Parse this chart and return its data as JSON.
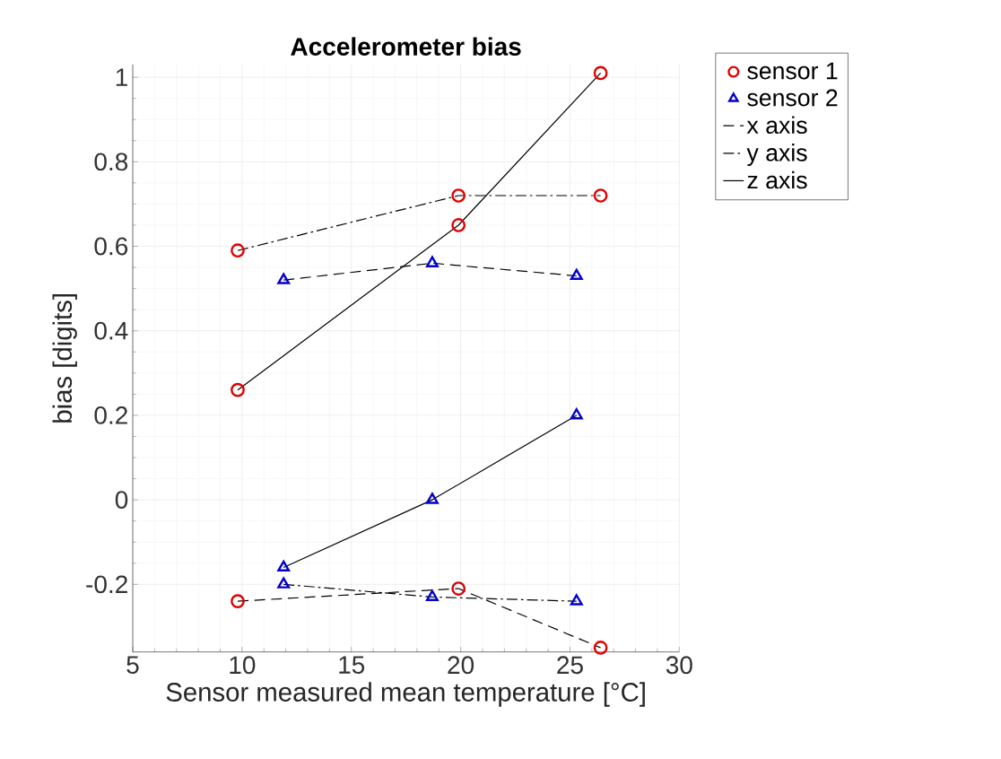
{
  "chart_data": {
    "type": "scatter",
    "title": "Accelerometer bias",
    "xlabel": "Sensor measured mean temperature [°C]",
    "ylabel": "bias [digits]",
    "xlim": [
      5,
      30
    ],
    "xticks": [
      5,
      10,
      15,
      20,
      25,
      30
    ],
    "ylim": [
      -0.36,
      1.03
    ],
    "yticks": [
      -0.2,
      0,
      0.2,
      0.4,
      0.6,
      0.8,
      1
    ],
    "grid": true,
    "legend": "top right",
    "series": [
      {
        "name": "sensor 1",
        "color": "#e00000",
        "marker": "circle",
        "x": [
          9.8,
          9.8,
          9.8,
          19.9,
          19.9,
          19.9,
          26.4,
          26.4,
          26.4
        ],
        "values": [
          0.59,
          0.26,
          -0.24,
          0.72,
          0.65,
          -0.21,
          1.01,
          0.72,
          -0.35
        ]
      },
      {
        "name": "sensor 2",
        "color": "#0000d0",
        "marker": "triangle",
        "x": [
          11.9,
          11.9,
          11.9,
          18.7,
          18.7,
          18.7,
          25.3,
          25.3,
          25.3
        ],
        "values": [
          0.52,
          -0.16,
          -0.2,
          0.56,
          0,
          -0.23,
          0.53,
          0.2,
          -0.24
        ]
      },
      {
        "name": "x axis",
        "type": "line",
        "color": "#000000",
        "line_style": "dashed",
        "x": [
          9.8,
          19.9,
          26.4,
          null,
          11.9,
          18.7,
          25.3
        ],
        "values": [
          -0.24,
          -0.21,
          -0.35,
          null,
          0.52,
          0.56,
          0.53
        ]
      },
      {
        "name": "y axis",
        "type": "line",
        "color": "#000000",
        "line_style": "dashdot",
        "x": [
          9.8,
          19.9,
          26.4,
          null,
          11.9,
          18.7,
          25.3
        ],
        "values": [
          0.59,
          0.72,
          0.72,
          null,
          -0.2,
          -0.23,
          -0.24
        ]
      },
      {
        "name": "z axis",
        "type": "line",
        "color": "#000000",
        "line_style": "solid",
        "x": [
          9.8,
          19.9,
          26.4,
          null,
          11.9,
          18.7,
          25.3
        ],
        "values": [
          0.26,
          0.65,
          1.01,
          null,
          -0.16,
          0,
          0.2
        ]
      }
    ]
  }
}
